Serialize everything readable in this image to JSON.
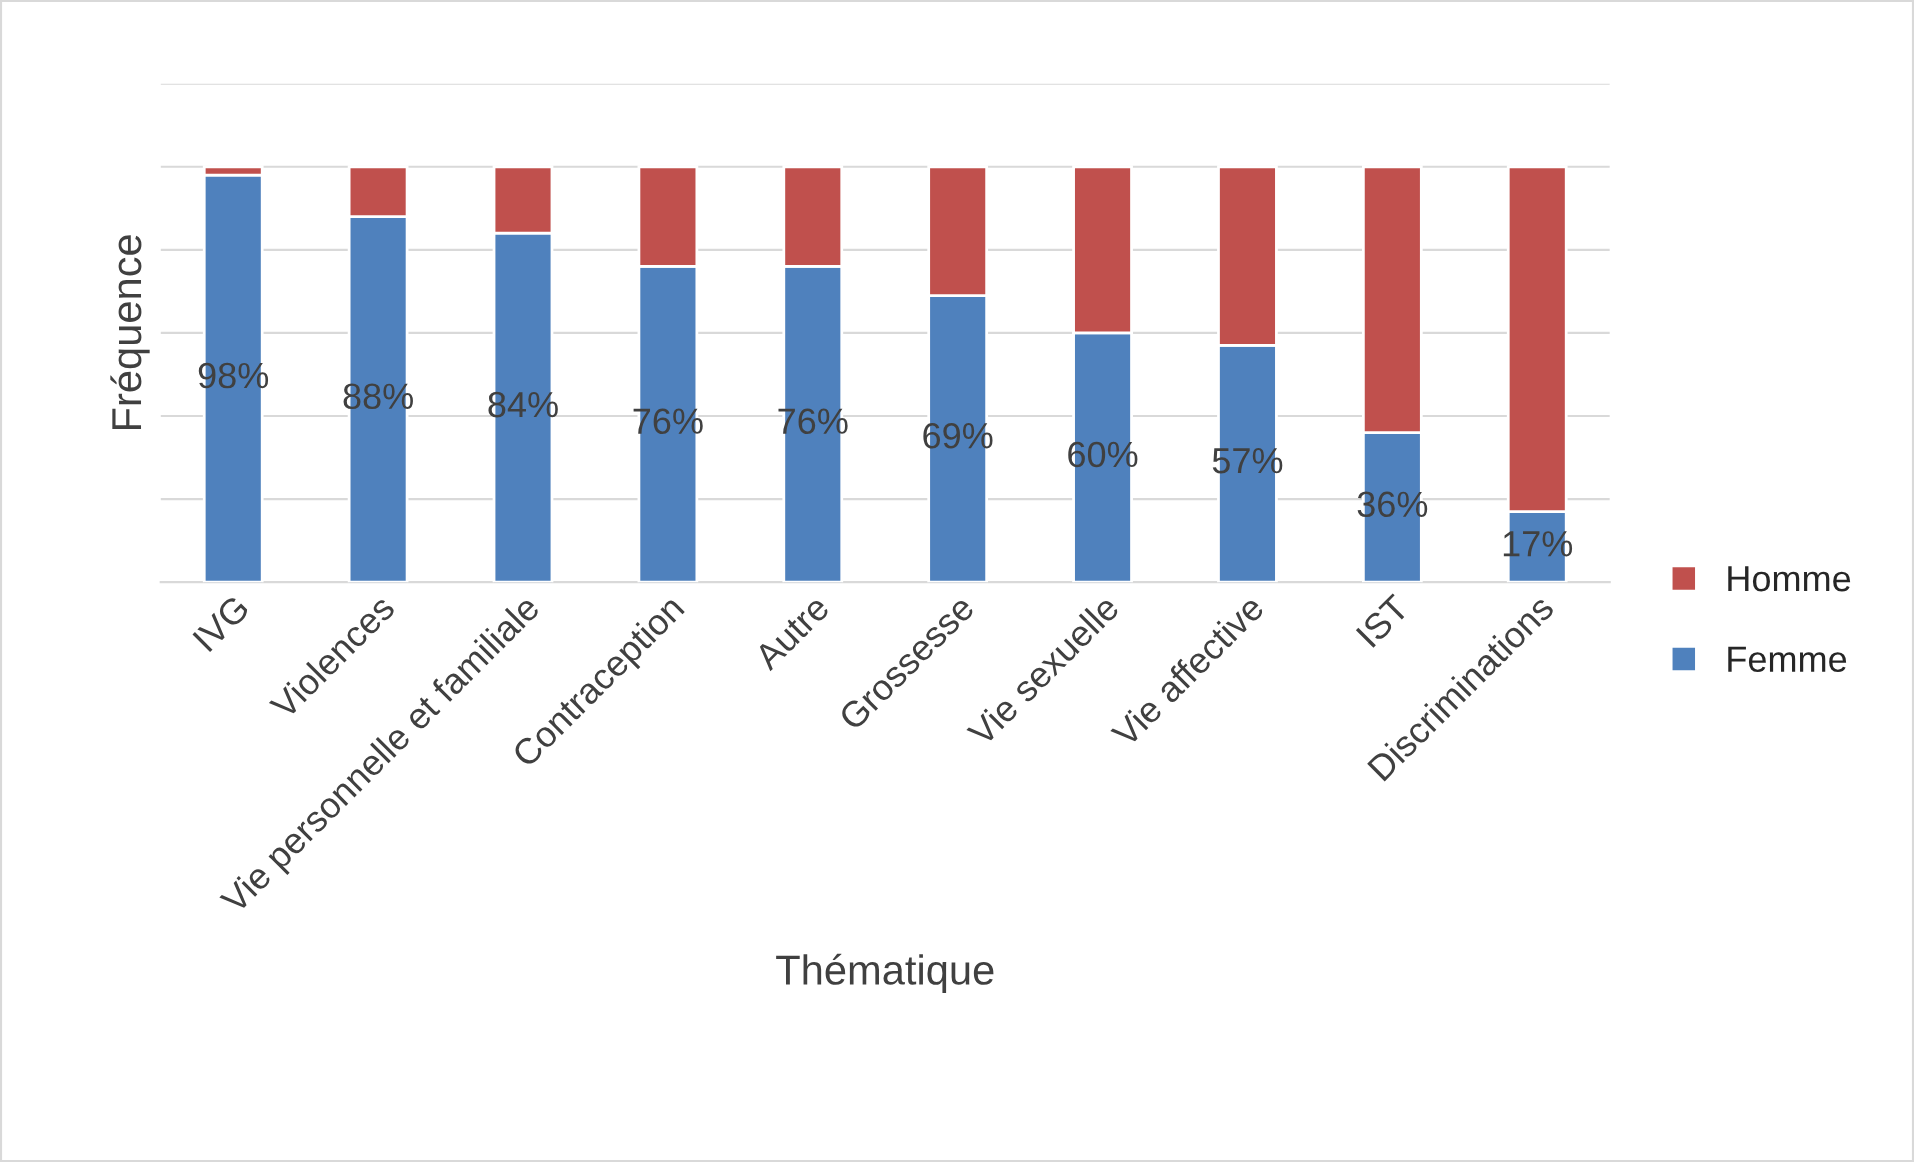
{
  "chart_data": {
    "type": "bar",
    "stacked": true,
    "xlabel": "Thématique",
    "ylabel": "Fréquence",
    "categories": [
      "IVG",
      "Violences",
      "Vie personnelle et familiale",
      "Contraception",
      "Autre",
      "Grossesse",
      "Vie sexuelle",
      "Vie affective",
      "IST",
      "Discriminations"
    ],
    "series": [
      {
        "name": "Femme",
        "color": "#4f81bd",
        "values": [
          98,
          88,
          84,
          76,
          76,
          69,
          60,
          57,
          36,
          17
        ],
        "value_labels": [
          "98%",
          "88%",
          "84%",
          "76%",
          "76%",
          "69%",
          "60%",
          "57%",
          "36%",
          "17%"
        ]
      },
      {
        "name": "Homme",
        "color": "#c0504d",
        "values": [
          2,
          12,
          16,
          24,
          24,
          31,
          40,
          43,
          64,
          83
        ]
      }
    ],
    "ylim": [
      0,
      120
    ],
    "yticks": [
      {
        "value": 0,
        "label": null
      },
      {
        "value": 20,
        "label": null
      },
      {
        "value": 40,
        "label": null
      },
      {
        "value": 60,
        "label": null
      },
      {
        "value": 80,
        "label": null
      },
      {
        "value": 100,
        "label": null
      },
      {
        "value": 120,
        "label": null
      }
    ],
    "grid": "y",
    "legend": "right",
    "tick_labels": "x"
  }
}
